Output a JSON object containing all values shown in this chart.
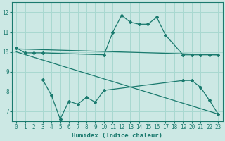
{
  "bg_color": "#cce8e4",
  "grid_color": "#a8d8d0",
  "line_color": "#1a7a6e",
  "xlabel": "Humidex (Indice chaleur)",
  "x_ticks": [
    0,
    1,
    2,
    3,
    4,
    5,
    6,
    7,
    8,
    9,
    10,
    11,
    12,
    13,
    14,
    15,
    16,
    17,
    18,
    19,
    20,
    21,
    22,
    23
  ],
  "ylim": [
    6.5,
    12.5
  ],
  "yticks": [
    7,
    8,
    9,
    10,
    11,
    12
  ],
  "line1_x": [
    0,
    1,
    2,
    3,
    10,
    11,
    12,
    13,
    14,
    15,
    16,
    17,
    19,
    20,
    21,
    22,
    23
  ],
  "line1_y": [
    10.2,
    9.95,
    9.95,
    9.95,
    9.85,
    11.0,
    11.85,
    11.5,
    11.4,
    11.4,
    11.75,
    10.85,
    9.85,
    9.85,
    9.85,
    9.85,
    9.85
  ],
  "line2_x": [
    0,
    23
  ],
  "line2_y": [
    10.15,
    9.85
  ],
  "line3_x": [
    0,
    23
  ],
  "line3_y": [
    10.0,
    6.85
  ],
  "line4_x": [
    3,
    4,
    5,
    6,
    7,
    8,
    9,
    10,
    19,
    20,
    21,
    22,
    23
  ],
  "line4_y": [
    8.6,
    7.8,
    6.6,
    7.5,
    7.35,
    7.7,
    7.45,
    8.05,
    8.55,
    8.55,
    8.2,
    7.55,
    6.85
  ]
}
